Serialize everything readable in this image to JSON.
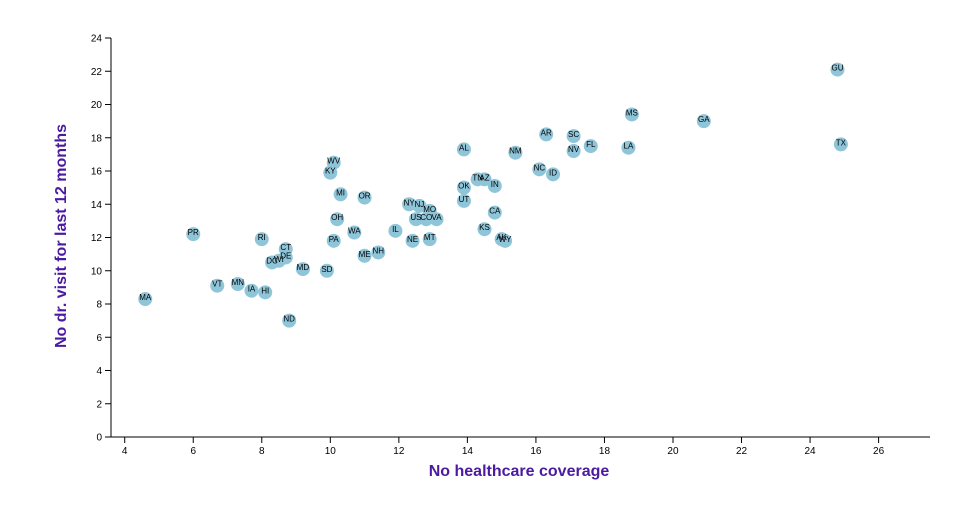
{
  "colors": {
    "point_fill": "#8fc5d9",
    "axis_title": "#4b1aa0",
    "axis": "#000000"
  },
  "chart_data": {
    "type": "scatter",
    "title": "",
    "xlabel": "No healthcare coverage",
    "ylabel": "No dr. visit for last 12 months",
    "xlim": [
      3.6,
      27.5
    ],
    "ylim": [
      0,
      24
    ],
    "x_ticks": [
      4,
      6,
      8,
      10,
      12,
      14,
      16,
      18,
      20,
      22,
      24,
      26
    ],
    "y_ticks": [
      0,
      2,
      4,
      6,
      8,
      10,
      12,
      14,
      16,
      18,
      20,
      22,
      24
    ],
    "grid": false,
    "legend": "none",
    "points": [
      {
        "label": "MA",
        "x": 4.6,
        "y": 8.3
      },
      {
        "label": "PR",
        "x": 6.0,
        "y": 12.2
      },
      {
        "label": "VT",
        "x": 6.7,
        "y": 9.1
      },
      {
        "label": "MN",
        "x": 7.3,
        "y": 9.2
      },
      {
        "label": "IA",
        "x": 7.7,
        "y": 8.8
      },
      {
        "label": "HI",
        "x": 8.1,
        "y": 8.7
      },
      {
        "label": "RI",
        "x": 8.0,
        "y": 11.9
      },
      {
        "label": "DC",
        "x": 8.3,
        "y": 10.5
      },
      {
        "label": "WI",
        "x": 8.5,
        "y": 10.6
      },
      {
        "label": "CT",
        "x": 8.7,
        "y": 11.3
      },
      {
        "label": "DE",
        "x": 8.7,
        "y": 10.8
      },
      {
        "label": "ND",
        "x": 8.8,
        "y": 7.0
      },
      {
        "label": "MD",
        "x": 9.2,
        "y": 10.1
      },
      {
        "label": "SD",
        "x": 9.9,
        "y": 10.0
      },
      {
        "label": "WV",
        "x": 10.1,
        "y": 16.5
      },
      {
        "label": "KY",
        "x": 10.0,
        "y": 15.9
      },
      {
        "label": "MI",
        "x": 10.3,
        "y": 14.6
      },
      {
        "label": "OH",
        "x": 10.2,
        "y": 13.1
      },
      {
        "label": "PA",
        "x": 10.1,
        "y": 11.8
      },
      {
        "label": "WA",
        "x": 10.7,
        "y": 12.3
      },
      {
        "label": "OR",
        "x": 11.0,
        "y": 14.4
      },
      {
        "label": "ME",
        "x": 11.0,
        "y": 10.9
      },
      {
        "label": "NH",
        "x": 11.4,
        "y": 11.1
      },
      {
        "label": "IL",
        "x": 11.9,
        "y": 12.4
      },
      {
        "label": "NY",
        "x": 12.3,
        "y": 14.0
      },
      {
        "label": "NJ",
        "x": 12.6,
        "y": 13.9
      },
      {
        "label": "US",
        "x": 12.5,
        "y": 13.1
      },
      {
        "label": "CO",
        "x": 12.8,
        "y": 13.1
      },
      {
        "label": "VA",
        "x": 13.1,
        "y": 13.1
      },
      {
        "label": "MO",
        "x": 12.9,
        "y": 13.6
      },
      {
        "label": "NE",
        "x": 12.4,
        "y": 11.8
      },
      {
        "label": "MT",
        "x": 12.9,
        "y": 11.9
      },
      {
        "label": "AL",
        "x": 13.9,
        "y": 17.3
      },
      {
        "label": "OK",
        "x": 13.9,
        "y": 15.0
      },
      {
        "label": "UT",
        "x": 13.9,
        "y": 14.2
      },
      {
        "label": "TN",
        "x": 14.3,
        "y": 15.5
      },
      {
        "label": "AZ",
        "x": 14.5,
        "y": 15.5
      },
      {
        "label": "IN",
        "x": 14.8,
        "y": 15.1
      },
      {
        "label": "KS",
        "x": 14.5,
        "y": 12.5
      },
      {
        "label": "CA",
        "x": 14.8,
        "y": 13.5
      },
      {
        "label": "AK",
        "x": 15.0,
        "y": 11.9
      },
      {
        "label": "WY",
        "x": 15.1,
        "y": 11.8
      },
      {
        "label": "NM",
        "x": 15.4,
        "y": 17.1
      },
      {
        "label": "AR",
        "x": 16.3,
        "y": 18.2
      },
      {
        "label": "NC",
        "x": 16.1,
        "y": 16.1
      },
      {
        "label": "ID",
        "x": 16.5,
        "y": 15.8
      },
      {
        "label": "SC",
        "x": 17.1,
        "y": 18.1
      },
      {
        "label": "NV",
        "x": 17.1,
        "y": 17.2
      },
      {
        "label": "FL",
        "x": 17.6,
        "y": 17.5
      },
      {
        "label": "MS",
        "x": 18.8,
        "y": 19.4
      },
      {
        "label": "LA",
        "x": 18.7,
        "y": 17.4
      },
      {
        "label": "GA",
        "x": 20.9,
        "y": 19.0
      },
      {
        "label": "GU",
        "x": 24.8,
        "y": 22.1
      },
      {
        "label": "TX",
        "x": 24.9,
        "y": 17.6
      }
    ]
  }
}
